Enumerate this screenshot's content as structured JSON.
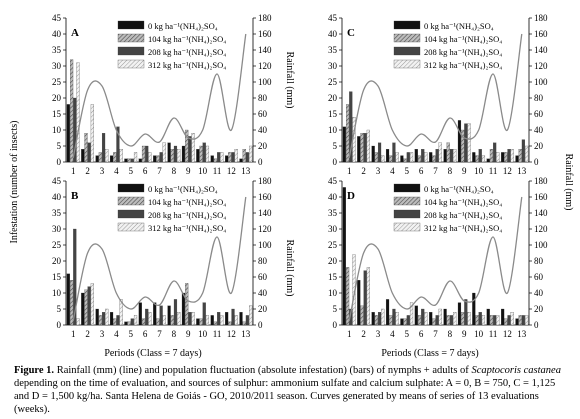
{
  "figure": {
    "y_label_left": "Infestation (number of insects)",
    "y_label_right": "Rainfall (mm)",
    "x_label": "Periods (Class = 7 days)",
    "caption_label": "Figure 1.",
    "caption_text_1": " Rainfall (mm) (line) and population fluctuation (absolute infestation) (bars) of nymphs + adults of ",
    "caption_species": "Scaptocoris castanea",
    "caption_text_2": " depending on the time of evaluation, and sources of sulphur: ammonium sulfate and calcium sulphate: A = 0, B = 750, C = 1,125 and D = 1,500 kg/ha. Santa Helena de Goiás - GO, 2010/2011 season. Curves generated by means of series of 13 evaluations (weeks)."
  },
  "colors": {
    "s0": "#111111",
    "s104": "#9a9a9a",
    "s208": "#444444",
    "s312": "#c8c8c8",
    "line": "#8a8a8a"
  },
  "chart_data": [
    {
      "panel": "A",
      "type": "bar+line",
      "categories": [
        "1",
        "2",
        "3",
        "4",
        "5",
        "6",
        "7",
        "8",
        "9",
        "10",
        "11",
        "12",
        "13"
      ],
      "ylim_left": [
        0,
        45
      ],
      "yticks_left": [
        0,
        5,
        10,
        15,
        20,
        25,
        30,
        35,
        40,
        45
      ],
      "ylim_right": [
        0,
        180
      ],
      "yticks_right": [
        0,
        20,
        40,
        60,
        80,
        100,
        120,
        140,
        160,
        180
      ],
      "legend": [
        "0 kg ha⁻¹(NH₄)₂SO₄",
        "104 kg ha⁻¹(NH₄)₂SO₄",
        "208 kg ha⁻¹(NH₄)₂SO₄",
        "312 kg ha⁻¹(NH₄)₂SO₄"
      ],
      "series": [
        {
          "name": "0 kg ha⁻¹(NH₄)₂SO₄",
          "values": [
            18,
            4,
            2,
            2,
            1,
            1,
            2,
            6,
            5,
            4,
            2,
            2,
            1
          ]
        },
        {
          "name": "104 kg ha⁻¹(NH₄)₂SO₄",
          "values": [
            32,
            9,
            3,
            3,
            1,
            5,
            2,
            4,
            10,
            5,
            1,
            3,
            4
          ]
        },
        {
          "name": "208 kg ha⁻¹(NH₄)₂SO₄",
          "values": [
            20,
            6,
            9,
            11,
            1,
            5,
            3,
            5,
            8,
            6,
            3,
            3,
            3
          ]
        },
        {
          "name": "312 kg ha⁻¹(NH₄)₂SO₄",
          "values": [
            31,
            18,
            4,
            4,
            3,
            3,
            6,
            4,
            9,
            5,
            3,
            4,
            5
          ]
        }
      ],
      "rainfall": [
        5,
        90,
        95,
        40,
        20,
        35,
        25,
        55,
        30,
        40,
        110,
        40,
        160
      ]
    },
    {
      "panel": "B",
      "type": "bar+line",
      "categories": [
        "1",
        "2",
        "3",
        "4",
        "5",
        "6",
        "7",
        "8",
        "9",
        "10",
        "11",
        "12",
        "13"
      ],
      "ylim_left": [
        0,
        45
      ],
      "yticks_left": [
        0,
        5,
        10,
        15,
        20,
        25,
        30,
        35,
        40,
        45
      ],
      "ylim_right": [
        0,
        180
      ],
      "yticks_right": [
        0,
        20,
        40,
        60,
        80,
        100,
        120,
        140,
        160,
        180
      ],
      "legend": [
        "0 kg ha⁻¹(NH₄)₂SO₄",
        "104 kg ha⁻¹(NH₄)₂SO₄",
        "208 kg ha⁻¹(NH₄)₂SO₄",
        "312 kg ha⁻¹(NH₄)₂SO₄"
      ],
      "series": [
        {
          "name": "0 kg ha⁻¹(NH₄)₂SO₄",
          "values": [
            16,
            10,
            5,
            4,
            1,
            7,
            7,
            6,
            10,
            2,
            3,
            4,
            4
          ]
        },
        {
          "name": "104 kg ha⁻¹(NH₄)₂SO₄",
          "values": [
            14,
            11,
            3,
            2,
            1,
            2,
            2,
            3,
            13,
            2,
            1,
            1,
            1
          ]
        },
        {
          "name": "208 kg ha⁻¹(NH₄)₂SO₄",
          "values": [
            30,
            12,
            4,
            3,
            2,
            5,
            6,
            8,
            4,
            7,
            4,
            5,
            3
          ]
        },
        {
          "name": "312 kg ha⁻¹(NH₄)₂SO₄",
          "values": [
            2,
            13,
            5,
            8,
            3,
            4,
            3,
            4,
            4,
            3,
            3,
            3,
            6
          ]
        }
      ],
      "rainfall": [
        5,
        90,
        95,
        40,
        20,
        35,
        25,
        55,
        30,
        40,
        110,
        40,
        160
      ]
    },
    {
      "panel": "C",
      "type": "bar+line",
      "categories": [
        "1",
        "2",
        "3",
        "4",
        "5",
        "6",
        "7",
        "8",
        "9",
        "10",
        "11",
        "12",
        "13"
      ],
      "ylim_left": [
        0,
        45
      ],
      "yticks_left": [
        0,
        5,
        10,
        15,
        20,
        25,
        30,
        35,
        40,
        45
      ],
      "ylim_right": [
        0,
        180
      ],
      "yticks_right": [
        0,
        20,
        40,
        60,
        80,
        100,
        120,
        140,
        160,
        180
      ],
      "legend": [
        "0 kg ha⁻¹(NH₄)₂SO₄",
        "104 kg ha⁻¹(NH₄)₂SO₄",
        "208 kg ha⁻¹(NH₄)₂SO₄",
        "312 kg ha⁻¹(NH₄)₂SO₄"
      ],
      "series": [
        {
          "name": "0 kg ha⁻¹(NH₄)₂SO₄",
          "values": [
            11,
            8,
            5,
            4,
            2,
            4,
            3,
            4,
            13,
            3,
            1,
            3,
            2
          ]
        },
        {
          "name": "104 kg ha⁻¹(NH₄)₂SO₄",
          "values": [
            18,
            9,
            3,
            2,
            1,
            2,
            2,
            6,
            10,
            2,
            4,
            3,
            4
          ]
        },
        {
          "name": "208 kg ha⁻¹(NH₄)₂SO₄",
          "values": [
            22,
            9,
            6,
            6,
            3,
            4,
            4,
            4,
            12,
            4,
            6,
            4,
            7
          ]
        },
        {
          "name": "312 kg ha⁻¹(NH₄)₂SO₄",
          "values": [
            14,
            10,
            2,
            3,
            3,
            3,
            6,
            4,
            12,
            2,
            3,
            4,
            5
          ]
        }
      ],
      "rainfall": [
        5,
        90,
        95,
        40,
        20,
        35,
        25,
        55,
        30,
        40,
        110,
        40,
        160
      ]
    },
    {
      "panel": "D",
      "type": "bar+line",
      "categories": [
        "1",
        "2",
        "3",
        "4",
        "5",
        "6",
        "7",
        "8",
        "9",
        "10",
        "11",
        "12",
        "13"
      ],
      "ylim_left": [
        0,
        45
      ],
      "yticks_left": [
        0,
        5,
        10,
        15,
        20,
        25,
        30,
        35,
        40,
        45
      ],
      "ylim_right": [
        0,
        180
      ],
      "yticks_right": [
        0,
        20,
        40,
        60,
        80,
        100,
        120,
        140,
        160,
        180
      ],
      "legend": [
        "0 kg ha⁻¹(NH₄)₂SO₄",
        "104 kg ha⁻¹(NH₄)₂SO₄",
        "208 kg ha⁻¹(NH₄)₂SO₄",
        "312 kg ha⁻¹(NH₄)₂SO₄"
      ],
      "series": [
        {
          "name": "0 kg ha⁻¹(NH₄)₂SO₄",
          "values": [
            43,
            14,
            4,
            8,
            2,
            6,
            4,
            5,
            7,
            10,
            5,
            5,
            2
          ]
        },
        {
          "name": "104 kg ha⁻¹(NH₄)₂SO₄",
          "values": [
            18,
            6,
            3,
            3,
            2,
            3,
            2,
            3,
            4,
            3,
            3,
            2,
            3
          ]
        },
        {
          "name": "208 kg ha⁻¹(NH₄)₂SO₄",
          "values": [
            5,
            17,
            4,
            5,
            3,
            5,
            3,
            3,
            8,
            4,
            3,
            3,
            3
          ]
        },
        {
          "name": "312 kg ha⁻¹(NH₄)₂SO₄",
          "values": [
            22,
            18,
            5,
            4,
            7,
            4,
            5,
            4,
            4,
            3,
            3,
            4,
            3
          ]
        }
      ],
      "rainfall": [
        5,
        90,
        95,
        40,
        20,
        35,
        25,
        55,
        30,
        40,
        110,
        40,
        160
      ]
    }
  ]
}
